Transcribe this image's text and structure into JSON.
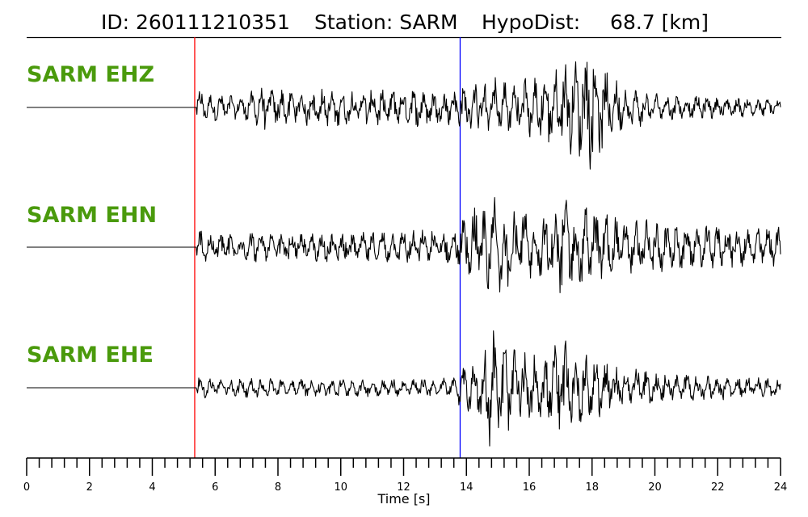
{
  "header": {
    "id_label": "ID: 260111210351",
    "station_label": "Station: SARM",
    "hypodist_label": "HypoDist:",
    "hypodist_value": "68.7 [km]"
  },
  "chart_data": {
    "type": "line",
    "title": "ID: 260111210351   Station: SARM   HypoDist:    68.7 [km]",
    "xlabel": "Time [s]",
    "ylabel": "",
    "xlim": [
      0,
      24
    ],
    "xticks": [
      0,
      2,
      4,
      6,
      8,
      10,
      12,
      14,
      16,
      18,
      20,
      22,
      24
    ],
    "minor_tick_step": 0.4,
    "grid": false,
    "picks": [
      {
        "phase": "P",
        "time": 5.35,
        "color": "#ff0000"
      },
      {
        "phase": "S",
        "time": 13.8,
        "color": "#0000ff"
      }
    ],
    "series": [
      {
        "name": "SARM EHZ",
        "x": [
          0,
          5.3,
          5.45,
          5.8,
          6.3,
          7.0,
          7.5,
          8.0,
          9.0,
          10.0,
          11.0,
          12.0,
          12.5,
          13.0,
          13.8,
          14.5,
          15.0,
          15.5,
          16.0,
          16.8,
          17.3,
          17.9,
          18.4,
          19.0,
          20.0,
          21.0,
          22.0,
          23.0,
          24.0
        ],
        "envelope": [
          0.0,
          0.0,
          0.32,
          0.22,
          0.22,
          0.2,
          0.38,
          0.3,
          0.3,
          0.3,
          0.3,
          0.32,
          0.34,
          0.28,
          0.3,
          0.5,
          0.48,
          0.42,
          0.5,
          0.62,
          0.75,
          1.0,
          0.62,
          0.38,
          0.24,
          0.18,
          0.18,
          0.16,
          0.12
        ]
      },
      {
        "name": "SARM EHN",
        "x": [
          0,
          5.3,
          5.45,
          6.0,
          7.0,
          8.0,
          9.0,
          10.0,
          11.0,
          12.0,
          13.0,
          13.7,
          13.8,
          14.3,
          14.9,
          15.5,
          16.0,
          16.5,
          17.0,
          17.5,
          18.0,
          18.5,
          19.5,
          20.5,
          21.5,
          22.5,
          23.5,
          24.0
        ],
        "envelope": [
          0.0,
          0.0,
          0.3,
          0.2,
          0.25,
          0.2,
          0.25,
          0.25,
          0.25,
          0.26,
          0.28,
          0.25,
          0.5,
          0.72,
          0.85,
          0.65,
          0.52,
          0.55,
          0.8,
          0.72,
          0.6,
          0.55,
          0.45,
          0.4,
          0.35,
          0.32,
          0.3,
          0.32
        ]
      },
      {
        "name": "SARM EHE",
        "x": [
          0,
          5.3,
          5.45,
          6.0,
          7.0,
          8.0,
          9.0,
          10.0,
          11.0,
          12.0,
          13.0,
          13.7,
          13.8,
          14.3,
          14.8,
          15.5,
          16.0,
          16.5,
          17.0,
          17.5,
          18.0,
          18.5,
          19.5,
          20.5,
          21.5,
          22.5,
          23.5,
          24.0
        ],
        "envelope": [
          0.0,
          0.0,
          0.18,
          0.15,
          0.15,
          0.15,
          0.14,
          0.14,
          0.14,
          0.14,
          0.14,
          0.2,
          0.35,
          0.42,
          1.0,
          0.6,
          0.55,
          0.5,
          0.8,
          0.62,
          0.55,
          0.45,
          0.3,
          0.22,
          0.2,
          0.18,
          0.16,
          0.15
        ]
      }
    ]
  }
}
